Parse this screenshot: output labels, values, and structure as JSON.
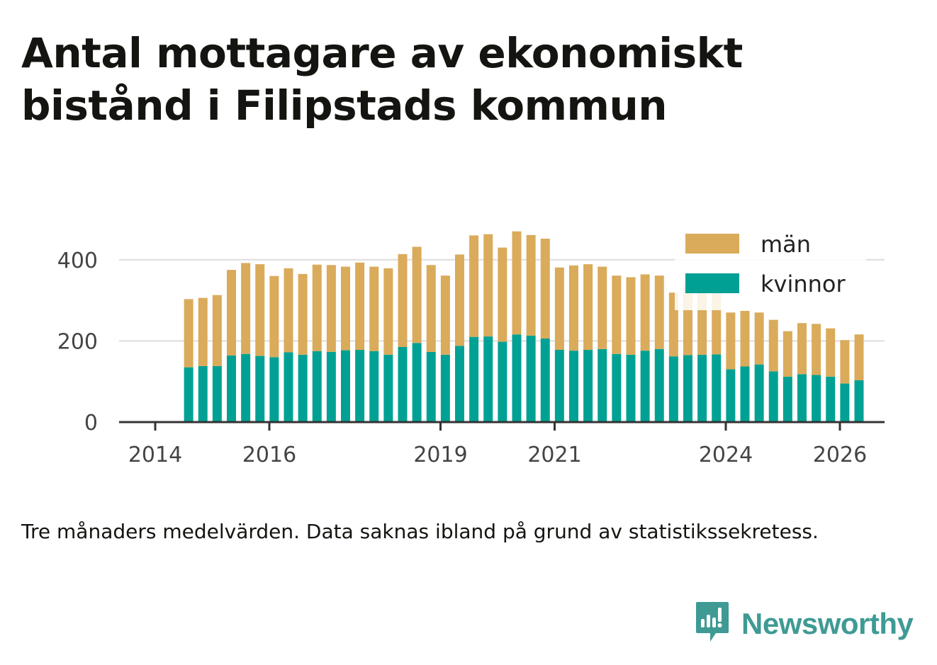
{
  "title": "Antal mottagare av ekonomiskt bistånd i Filipstads kommun",
  "footnote": "Tre månaders medelvärden. Data saknas ibland på grund av statistikssekretess.",
  "brand": {
    "name": "Newsworthy",
    "icon": "newsworthy-logo-icon",
    "color": "#3f9a94"
  },
  "chart_data": {
    "type": "bar",
    "stacked": true,
    "title": "Antal mottagare av ekonomiskt bistånd i Filipstads kommun",
    "xlabel": "",
    "ylabel": "",
    "ylim": [
      0,
      460
    ],
    "yticks": [
      0,
      200,
      400
    ],
    "x_start": "2014-04",
    "x_step_months": 3,
    "xticks": [
      "2014",
      "2016",
      "2019",
      "2021",
      "2024",
      "2026"
    ],
    "grid": true,
    "legend_position": "top-right",
    "colors": {
      "män": "#d9ab5b",
      "kvinnor": "#00a194"
    },
    "series": [
      {
        "name": "kvinnor",
        "values": [
          135,
          138,
          138,
          164,
          168,
          163,
          160,
          172,
          166,
          175,
          173,
          177,
          178,
          175,
          166,
          185,
          195,
          173,
          166,
          188,
          210,
          211,
          198,
          216,
          213,
          206,
          178,
          176,
          178,
          180,
          168,
          166,
          176,
          180,
          162,
          165,
          166,
          167,
          130,
          137,
          142,
          125,
          112,
          118,
          116,
          112,
          95,
          103
        ]
      },
      {
        "name": "män",
        "values": [
          168,
          168,
          175,
          211,
          224,
          226,
          200,
          207,
          199,
          213,
          214,
          206,
          215,
          208,
          213,
          229,
          237,
          214,
          195,
          225,
          250,
          252,
          232,
          254,
          248,
          246,
          203,
          210,
          211,
          203,
          193,
          191,
          188,
          181,
          157,
          173,
          170,
          152,
          140,
          137,
          128,
          127,
          112,
          126,
          126,
          119,
          107,
          113
        ]
      }
    ]
  }
}
